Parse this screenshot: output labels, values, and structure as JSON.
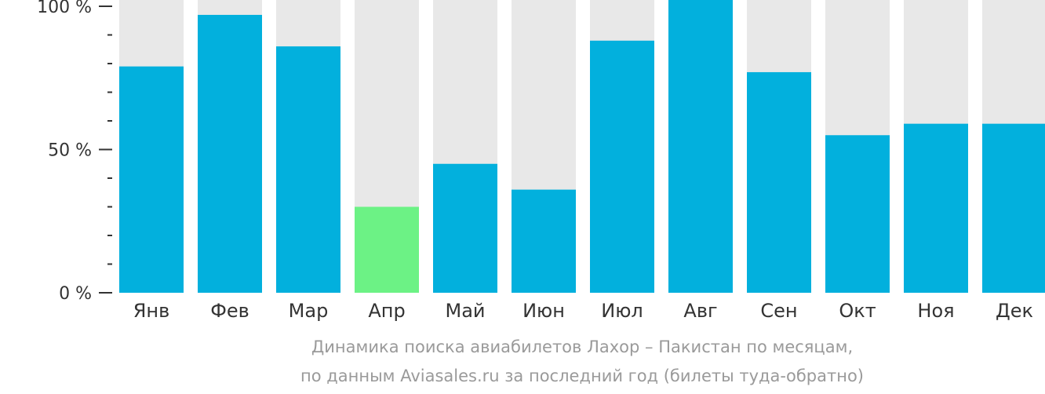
{
  "chart_data": {
    "type": "bar",
    "categories": [
      "Янв",
      "Фев",
      "Мар",
      "Апр",
      "Май",
      "Июн",
      "Июл",
      "Авг",
      "Сен",
      "Окт",
      "Ноя",
      "Дек"
    ],
    "values": [
      79,
      97,
      86,
      30,
      45,
      36,
      88,
      105,
      77,
      55,
      59,
      59
    ],
    "highlight_index": 3,
    "ylim": [
      0,
      100
    ],
    "yticks": [
      {
        "value": 0,
        "label": "0 %"
      },
      {
        "value": 50,
        "label": "50 %"
      },
      {
        "value": 100,
        "label": "100 %"
      }
    ],
    "minor_tick_step": 10,
    "background_bars": true,
    "colors": {
      "bar": "#02b0dd",
      "highlight": "#6cf285",
      "background_bar": "#e8e8e8",
      "axis": "#333333"
    }
  },
  "caption": {
    "line1": "Динамика поиска авиабилетов Лахор – Пакистан по месяцам,",
    "line2": "по данным Aviasales.ru за последний год (билеты туда-обратно)"
  }
}
